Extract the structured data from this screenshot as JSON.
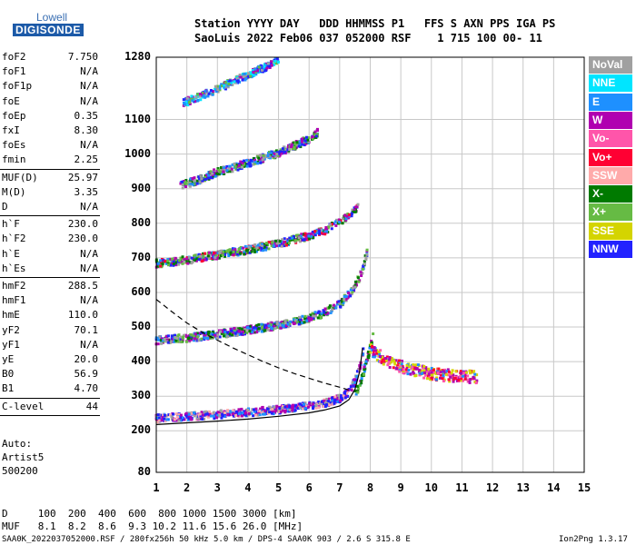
{
  "logo": {
    "line1": "Lowell",
    "line2": "DIGISONDE"
  },
  "header": {
    "labels": "Station YYYY DAY   DDD HHMMSS P1   FFS S AXN PPS IGA PS",
    "values": "SaoLuis 2022 Feb06 037 052000 RSF    1 715 100 00- 11"
  },
  "params": [
    {
      "name": "foF2",
      "value": "7.750"
    },
    {
      "name": "foF1",
      "value": "N/A"
    },
    {
      "name": "foF1p",
      "value": "N/A"
    },
    {
      "name": "foE",
      "value": "N/A"
    },
    {
      "name": "foEp",
      "value": "0.35"
    },
    {
      "name": "fxI",
      "value": "8.30"
    },
    {
      "name": "foEs",
      "value": "N/A"
    },
    {
      "name": "fmin",
      "value": "2.25"
    },
    {
      "name": "MUF(D)",
      "value": "25.97"
    },
    {
      "name": "M(D)",
      "value": "3.35"
    },
    {
      "name": "D",
      "value": "N/A"
    },
    {
      "name": "h`F",
      "value": "230.0"
    },
    {
      "name": "h`F2",
      "value": "230.0"
    },
    {
      "name": "h`E",
      "value": "N/A"
    },
    {
      "name": "h`Es",
      "value": "N/A"
    },
    {
      "name": "hmF2",
      "value": "288.5"
    },
    {
      "name": "hmF1",
      "value": "N/A"
    },
    {
      "name": "hmE",
      "value": "110.0"
    },
    {
      "name": "yF2",
      "value": "70.1"
    },
    {
      "name": "yF1",
      "value": "N/A"
    },
    {
      "name": "yE",
      "value": "20.0"
    },
    {
      "name": "B0",
      "value": "56.9"
    },
    {
      "name": "B1",
      "value": "4.70"
    },
    {
      "name": "C-level",
      "value": "44"
    }
  ],
  "scaling": {
    "line1": "Auto:",
    "line2": "Artist5",
    "line3": "500200"
  },
  "legend": [
    {
      "label": "NoVal",
      "color": "#a0a0a0"
    },
    {
      "label": "NNE",
      "color": "#00e5ff"
    },
    {
      "label": "E",
      "color": "#1e90ff"
    },
    {
      "label": "W",
      "color": "#b000b0"
    },
    {
      "label": "Vo-",
      "color": "#ff55aa"
    },
    {
      "label": "Vo+",
      "color": "#ff0033"
    },
    {
      "label": "SSW",
      "color": "#ffaaaa"
    },
    {
      "label": "X-",
      "color": "#007a00"
    },
    {
      "label": "X+",
      "color": "#66bb44"
    },
    {
      "label": "SSE",
      "color": "#d4d400"
    },
    {
      "label": "NNW",
      "color": "#2222ff"
    }
  ],
  "muf_table": {
    "d_line": "D     100  200  400  600  800 1000 1500 3000 [km]",
    "muf_line": "MUF   8.1  8.2  8.6  9.3 10.2 11.6 15.6 26.0 [MHz]"
  },
  "footer": {
    "left": "SAA0K_2022037052000.RSF / 280fx256h 50 kHz 5.0 km / DPS-4 SAA0K 903 / 2.6 S 315.8 E",
    "right": "Ion2Png 1.3.17"
  },
  "chart_data": {
    "type": "scatter",
    "xlabel": "",
    "ylabel": "",
    "xlim": [
      1,
      15
    ],
    "ylim": [
      80,
      1280
    ],
    "x_ticks": [
      1,
      2,
      3,
      4,
      5,
      6,
      7,
      8,
      9,
      10,
      11,
      12,
      13,
      14,
      15
    ],
    "y_ticks": [
      80,
      200,
      300,
      400,
      500,
      600,
      700,
      800,
      900,
      1000,
      1100,
      1280
    ],
    "grid": true,
    "legend_position": "right",
    "traces": [
      {
        "name": "1st hop O",
        "x": [
          1.0,
          2.0,
          3.0,
          4.0,
          5.0,
          6.0,
          6.5,
          7.0,
          7.3,
          7.5,
          7.7,
          7.8
        ],
        "y": [
          232,
          238,
          244,
          250,
          258,
          268,
          276,
          290,
          310,
          340,
          390,
          450
        ]
      },
      {
        "name": "1st hop X",
        "x": [
          7.5,
          7.7,
          7.9,
          8.0,
          8.1
        ],
        "y": [
          300,
          340,
          400,
          440,
          470
        ]
      },
      {
        "name": "spread F",
        "x": [
          8.0,
          8.5,
          9.0,
          9.5,
          10.0,
          10.5,
          11.0,
          11.5
        ],
        "y": [
          430,
          400,
          380,
          370,
          360,
          355,
          352,
          350
        ]
      },
      {
        "name": "2nd hop",
        "x": [
          1.0,
          2.0,
          3.0,
          4.0,
          5.0,
          6.0,
          6.5,
          7.0,
          7.4,
          7.7,
          7.9
        ],
        "y": [
          458,
          465,
          475,
          488,
          502,
          522,
          538,
          562,
          600,
          650,
          710
        ]
      },
      {
        "name": "3rd hop",
        "x": [
          1.0,
          2.0,
          3.0,
          4.0,
          5.0,
          6.0,
          6.5,
          7.0,
          7.3,
          7.6
        ],
        "y": [
          680,
          690,
          705,
          720,
          738,
          760,
          775,
          800,
          820,
          845
        ]
      },
      {
        "name": "4th hop",
        "x": [
          1.8,
          2.5,
          3.0,
          4.0,
          5.0,
          5.5,
          6.0,
          6.3
        ],
        "y": [
          905,
          925,
          945,
          970,
          1000,
          1020,
          1040,
          1060
        ]
      },
      {
        "name": "5th hop",
        "x": [
          1.9,
          2.5,
          3.0,
          3.5,
          4.0,
          4.5,
          5.0
        ],
        "y": [
          1145,
          1165,
          1185,
          1205,
          1225,
          1245,
          1268
        ]
      }
    ],
    "profile_solid": {
      "x": [
        1.0,
        2.0,
        3.0,
        4.0,
        5.0,
        6.0,
        6.5,
        7.0,
        7.3,
        7.5,
        7.65,
        7.75
      ],
      "y": [
        218,
        223,
        228,
        234,
        242,
        252,
        260,
        272,
        290,
        320,
        370,
        440
      ]
    },
    "profile_dashed": {
      "x": [
        1.0,
        1.5,
        2.0,
        2.5,
        3.0,
        3.5,
        4.0,
        4.5,
        5.0,
        5.5,
        6.0,
        6.5,
        7.0,
        7.3
      ],
      "y": [
        580,
        545,
        512,
        485,
        462,
        440,
        420,
        400,
        382,
        366,
        352,
        338,
        326,
        318
      ]
    }
  }
}
